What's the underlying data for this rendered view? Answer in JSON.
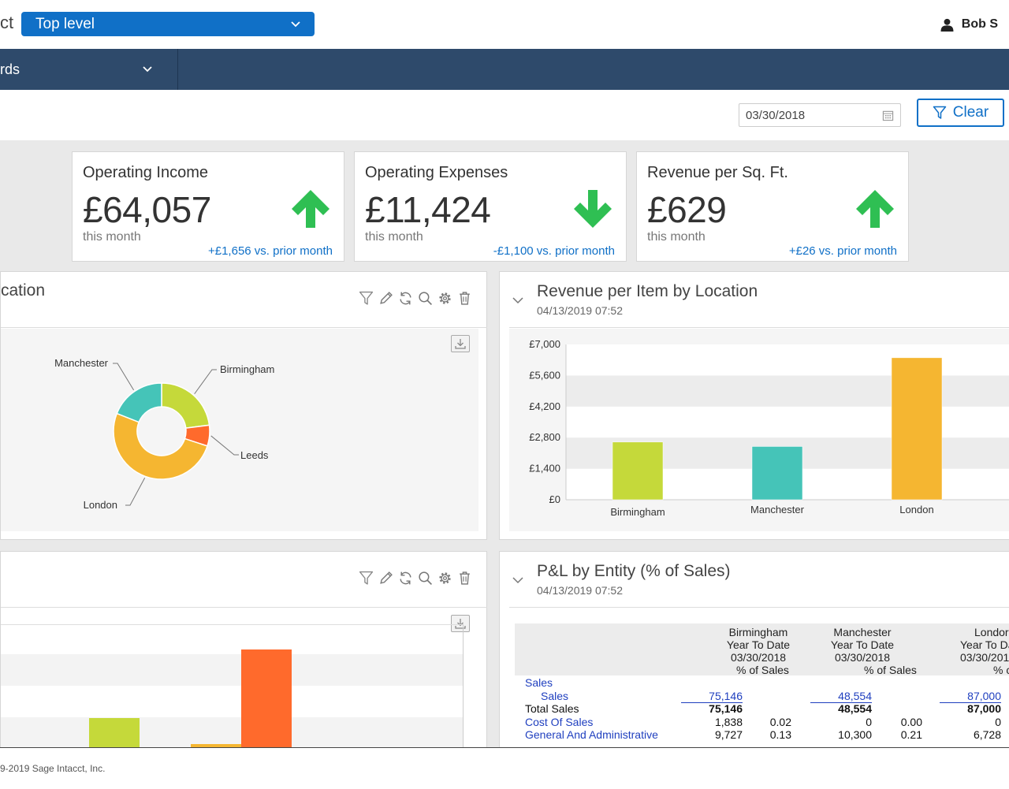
{
  "header": {
    "brand_partial": "ct",
    "level_select": "Top level",
    "user_name": "Bob S"
  },
  "nav": {
    "dashboards_partial": "rds"
  },
  "filters": {
    "date": "03/30/2018",
    "clear_label": "Clear"
  },
  "kpis": [
    {
      "title": "Operating Income",
      "value": "£64,057",
      "sub": "this month",
      "change": "+£1,656 vs. prior month",
      "direction": "up"
    },
    {
      "title": "Operating Expenses",
      "value": "£11,424",
      "sub": "this month",
      "change": "-£1,100 vs. prior month",
      "direction": "down"
    },
    {
      "title": "Revenue per Sq. Ft.",
      "value": "£629",
      "sub": "this month",
      "change": "+£26 vs. prior month",
      "direction": "up"
    }
  ],
  "panels": {
    "location": {
      "title_partial": "cation"
    },
    "revenue_item": {
      "title": "Revenue per Item by Location",
      "timestamp": "04/13/2019 07:52"
    },
    "pl": {
      "title": "P&L by Entity (% of Sales)",
      "timestamp": "04/13/2019 07:52"
    }
  },
  "chart_data": [
    {
      "type": "pie",
      "variant": "donut",
      "categories": [
        "Birmingham",
        "Leeds",
        "London",
        "Manchester"
      ],
      "values": [
        23,
        7,
        51,
        19
      ],
      "colors": [
        "#c5d93a",
        "#ff6a2c",
        "#f5b631",
        "#45c4b8"
      ]
    },
    {
      "type": "bar",
      "title": "Revenue per Item by Location",
      "categories": [
        "Birmingham",
        "Manchester",
        "London"
      ],
      "values": [
        2600,
        2400,
        6400
      ],
      "ylim": [
        0,
        7000
      ],
      "yticks": [
        "£0",
        "£1,400",
        "£2,800",
        "£4,200",
        "£5,600",
        "£7,000"
      ],
      "colors": [
        "#c5d93a",
        "#45c4b8",
        "#f5b631"
      ]
    }
  ],
  "pl_table": {
    "columns": [
      {
        "entity": "Birmingham",
        "period": "Year To Date",
        "date": "03/30/2018",
        "pct": "% of Sales"
      },
      {
        "entity": "Manchester",
        "period": "Year To Date",
        "date": "03/30/2018",
        "pct": "% of Sales"
      },
      {
        "entity": "Londor",
        "period": "Year To Da",
        "date": "03/30/201",
        "pct": "% c"
      }
    ],
    "rows": [
      {
        "label": "Sales",
        "link": true,
        "indent": false,
        "vals": [
          "",
          "",
          "",
          "",
          ""
        ]
      },
      {
        "label": "Sales",
        "link": true,
        "indent": true,
        "vals": [
          "75,146",
          "",
          "48,554",
          "",
          "87,000"
        ],
        "underline": true,
        "linkvals": true
      },
      {
        "label": "Total Sales",
        "link": false,
        "indent": false,
        "vals": [
          "75,146",
          "",
          "48,554",
          "",
          "87,000"
        ],
        "bold": true
      },
      {
        "label": "Cost Of Sales",
        "link": true,
        "indent": false,
        "vals": [
          "1,838",
          "0.02",
          "0",
          "0.00",
          "0"
        ]
      },
      {
        "label": "General And Administrative",
        "link": true,
        "indent": false,
        "vals": [
          "9,727",
          "0.13",
          "10,300",
          "0.21",
          "6,728"
        ]
      }
    ]
  },
  "footer": {
    "copyright": "9-2019 Sage Intacct, Inc."
  }
}
